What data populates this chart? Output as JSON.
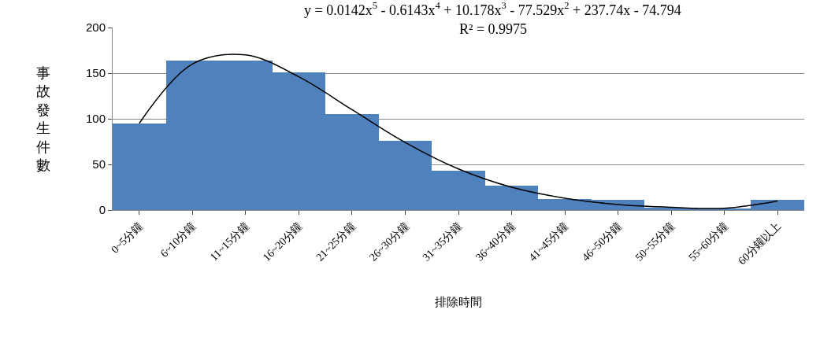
{
  "chart_data": {
    "type": "bar",
    "xlabel": "排除時間",
    "ylabel": "事故發生件數",
    "categories": [
      "0~5分鐘",
      "6~10分鐘",
      "11~15分鐘",
      "16~20分鐘",
      "21~25分鐘",
      "26~30分鐘",
      "31~35分鐘",
      "36~40分鐘",
      "41~45分鐘",
      "46~50分鐘",
      "50~55分鐘",
      "55~60分鐘",
      "60分鐘以上"
    ],
    "series": [
      {
        "color": "#4f81bd",
        "values": [
          95,
          164,
          164,
          151,
          105,
          76,
          43,
          27,
          12,
          11,
          3,
          2,
          11
        ]
      },
      {
        "type": "line",
        "color": "#000000",
        "values": [
          95,
          160,
          170,
          146,
          110,
          74,
          45,
          25,
          13,
          6,
          3,
          2,
          10
        ]
      }
    ],
    "ylim": [
      0,
      200
    ],
    "yticks": [
      0,
      50,
      100,
      150,
      200
    ],
    "grid": "y",
    "annotations": [
      "y = 0.0142x$^{5}$ - 0.6143x$^{4}$ + 10.178x$^{3}$ - 77.529x$^{2}$ + 237.74x - 74.794",
      "R² = 0.9975"
    ]
  }
}
